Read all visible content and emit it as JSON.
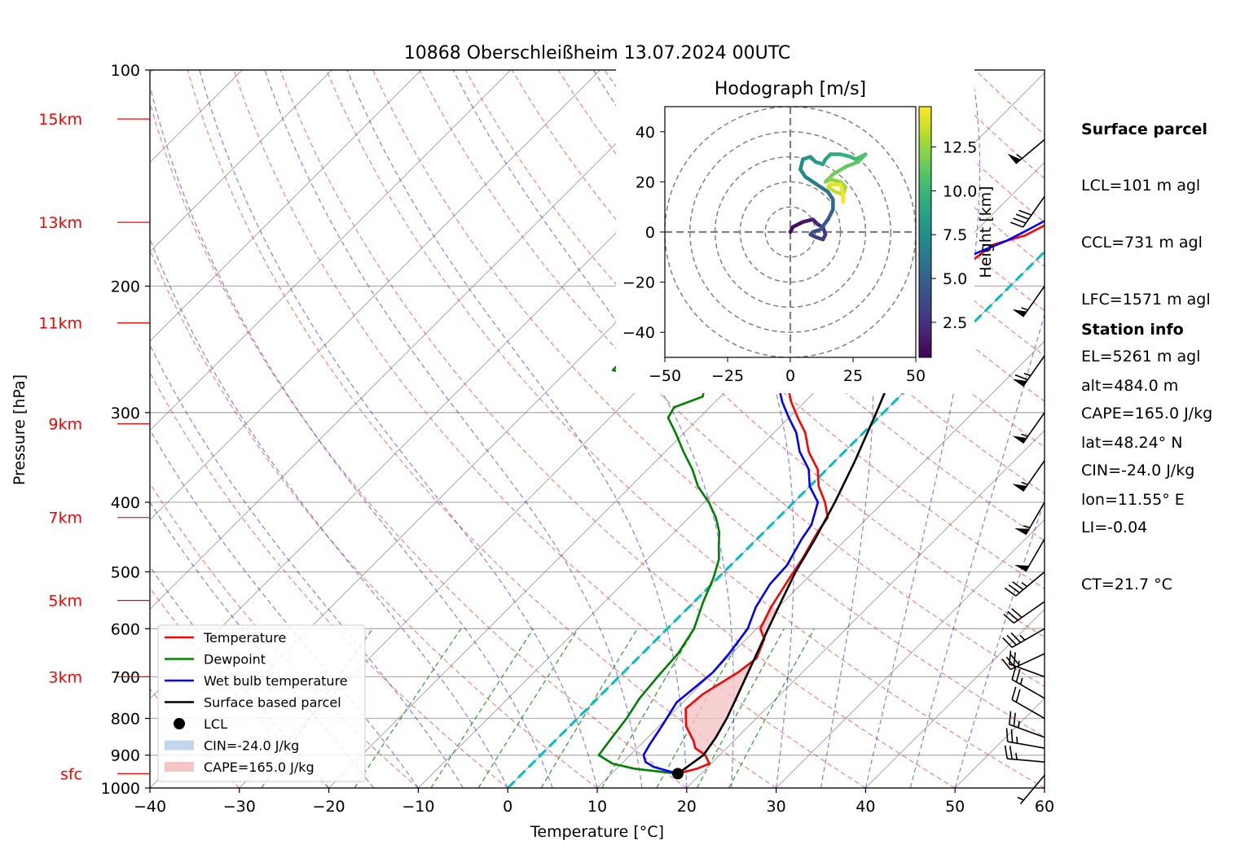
{
  "chart_data": {
    "type": "skew-t",
    "title": "10868 Oberschleißheim 13.07.2024 00UTC",
    "xlabel": "Temperature [°C]",
    "ylabel": "Pressure [hPa]",
    "xlim": [
      -40,
      60
    ],
    "ylim": [
      1000,
      100
    ],
    "x_ticks": [
      -40,
      -30,
      -20,
      -10,
      0,
      10,
      20,
      30,
      40,
      50,
      60
    ],
    "x_tick_labels": [
      "−40",
      "−30",
      "−20",
      "−10",
      "0",
      "10",
      "20",
      "30",
      "40",
      "50",
      "60"
    ],
    "y_ticks": [
      1000,
      900,
      800,
      700,
      600,
      500,
      400,
      300,
      200,
      100
    ],
    "height_labels": [
      {
        "text": "sfc",
        "pressure": 955
      },
      {
        "text": "3km",
        "pressure": 700
      },
      {
        "text": "5km",
        "pressure": 548
      },
      {
        "text": "7km",
        "pressure": 420
      },
      {
        "text": "9km",
        "pressure": 311
      },
      {
        "text": "11km",
        "pressure": 225
      },
      {
        "text": "13km",
        "pressure": 163
      },
      {
        "text": "15km",
        "pressure": 117
      }
    ],
    "series": [
      {
        "name": "Temperature",
        "color": "#ff0000",
        "points": [
          [
            17.4,
            955
          ],
          [
            19.0,
            940
          ],
          [
            19.8,
            925
          ],
          [
            18.4,
            900
          ],
          [
            16.5,
            880
          ],
          [
            15.5,
            860
          ],
          [
            13.0,
            820
          ],
          [
            11.0,
            775
          ],
          [
            11.3,
            740
          ],
          [
            12.8,
            690
          ],
          [
            13.3,
            660
          ],
          [
            12.0,
            620
          ],
          [
            10.4,
            600
          ],
          [
            9.2,
            560
          ],
          [
            8.0,
            510
          ],
          [
            7.3,
            480
          ],
          [
            6.0,
            440
          ],
          [
            5.5,
            420
          ],
          [
            3.5,
            400
          ],
          [
            1.0,
            380
          ],
          [
            -1.0,
            360
          ],
          [
            -4.0,
            340
          ],
          [
            -6.5,
            320
          ],
          [
            -9.0,
            305
          ],
          [
            -11.5,
            290
          ],
          [
            -13.0,
            280
          ],
          [
            -14.0,
            270
          ],
          [
            -15.5,
            260
          ],
          [
            -17.5,
            250
          ],
          [
            -19.0,
            245
          ],
          [
            -17.5,
            240
          ],
          [
            -16.5,
            235
          ],
          [
            -15.5,
            220
          ],
          [
            -14.5,
            210
          ],
          [
            -13.5,
            200
          ],
          [
            -11.0,
            195
          ],
          [
            -8.0,
            195
          ],
          [
            -7.5,
            190
          ],
          [
            -6.5,
            175
          ],
          [
            -4.0,
            170
          ],
          [
            -2.0,
            160
          ],
          [
            -1.0,
            150
          ],
          [
            1.0,
            140
          ],
          [
            2.5,
            135
          ],
          [
            4.5,
            125
          ],
          [
            6.5,
            120
          ],
          [
            10.0,
            115
          ]
        ]
      },
      {
        "name": "Dewpoint",
        "color": "#008000",
        "points": [
          [
            17.4,
            955
          ],
          [
            12.0,
            940
          ],
          [
            9.0,
            925
          ],
          [
            6.5,
            900
          ],
          [
            6.0,
            850
          ],
          [
            5.5,
            800
          ],
          [
            4.7,
            750
          ],
          [
            4.3,
            700
          ],
          [
            4.0,
            650
          ],
          [
            3.0,
            600
          ],
          [
            1.0,
            550
          ],
          [
            -0.5,
            510
          ],
          [
            -2.0,
            480
          ],
          [
            -3.5,
            460
          ],
          [
            -5.0,
            440
          ],
          [
            -7.0,
            420
          ],
          [
            -9.5,
            400
          ],
          [
            -12.5,
            380
          ],
          [
            -15.0,
            360
          ],
          [
            -18.0,
            340
          ],
          [
            -21.0,
            320
          ],
          [
            -23.5,
            305
          ],
          [
            -24.0,
            295
          ],
          [
            -22.0,
            285
          ],
          [
            -22.5,
            280
          ],
          [
            -31.5,
            265
          ],
          [
            -35.0,
            262
          ],
          [
            -35.0,
            250
          ],
          [
            -35.5,
            230
          ],
          [
            -36.0,
            210
          ],
          [
            -38.0,
            200
          ],
          [
            -36.5,
            190
          ],
          [
            -35.0,
            180
          ],
          [
            -34.0,
            170
          ],
          [
            -33.5,
            160
          ],
          [
            -33.5,
            150
          ],
          [
            -34.0,
            140
          ],
          [
            -36.0,
            130
          ],
          [
            -37.0,
            120
          ],
          [
            -35.0,
            115
          ]
        ]
      },
      {
        "name": "Wet bulb temperature",
        "color": "#0000ff",
        "points": [
          [
            17.4,
            955
          ],
          [
            14.0,
            935
          ],
          [
            12.5,
            920
          ],
          [
            11.5,
            900
          ],
          [
            11.0,
            870
          ],
          [
            10.3,
            820
          ],
          [
            9.3,
            760
          ],
          [
            9.7,
            720
          ],
          [
            10.0,
            690
          ],
          [
            9.7,
            650
          ],
          [
            9.0,
            600
          ],
          [
            7.5,
            560
          ],
          [
            6.5,
            520
          ],
          [
            6.3,
            490
          ],
          [
            5.0,
            450
          ],
          [
            4.5,
            430
          ],
          [
            2.7,
            400
          ],
          [
            0.0,
            380
          ],
          [
            -2.0,
            360
          ],
          [
            -5.0,
            340
          ],
          [
            -7.5,
            320
          ],
          [
            -10.0,
            305
          ],
          [
            -12.5,
            290
          ],
          [
            -14.0,
            280
          ],
          [
            -15.5,
            270
          ],
          [
            -16.5,
            262
          ],
          [
            -18.5,
            252
          ],
          [
            -19.5,
            245
          ],
          [
            -18.0,
            240
          ],
          [
            -17.5,
            235
          ],
          [
            -16.5,
            225
          ],
          [
            -15.5,
            215
          ],
          [
            -14.0,
            202
          ],
          [
            -12.5,
            197
          ],
          [
            -9.5,
            195
          ],
          [
            -8.5,
            190
          ],
          [
            -7.5,
            180
          ],
          [
            -5.5,
            173
          ],
          [
            -4.5,
            168
          ],
          [
            -3.0,
            160
          ],
          [
            -1.5,
            150
          ],
          [
            0.5,
            140
          ],
          [
            1.5,
            132
          ],
          [
            3.0,
            127
          ],
          [
            4.5,
            122
          ],
          [
            6.0,
            118
          ],
          [
            9.0,
            114
          ]
        ]
      },
      {
        "name": "Surface based parcel",
        "color": "#000000",
        "points": [
          [
            17.4,
            955
          ],
          [
            18.2,
            900
          ],
          [
            17.6,
            850
          ],
          [
            16.7,
            800
          ],
          [
            15.5,
            750
          ],
          [
            14.2,
            700
          ],
          [
            12.8,
            650
          ],
          [
            11.3,
            600
          ],
          [
            9.7,
            550
          ],
          [
            8.0,
            500
          ],
          [
            6.5,
            450
          ],
          [
            4.6,
            400
          ],
          [
            2.2,
            350
          ],
          [
            -0.8,
            300
          ],
          [
            -4.5,
            250
          ],
          [
            -10.4,
            200
          ],
          [
            -18.0,
            150
          ],
          [
            -24.5,
            118
          ]
        ]
      }
    ],
    "legend": {
      "placement": "lower-left",
      "entries": [
        {
          "label": "Temperature",
          "color": "#ff0000",
          "kind": "line"
        },
        {
          "label": "Dewpoint",
          "color": "#008000",
          "kind": "line"
        },
        {
          "label": "Wet bulb temperature",
          "color": "#0000ff",
          "kind": "line"
        },
        {
          "label": "Surface based parcel",
          "color": "#000000",
          "kind": "line"
        },
        {
          "label": "LCL",
          "color": "#000000",
          "kind": "dot"
        },
        {
          "label": "CIN=-24.0 J/kg",
          "color": "#c3d7ea",
          "kind": "patch"
        },
        {
          "label": "CAPE=165.0 J/kg",
          "color": "#f5c5c5",
          "kind": "patch"
        }
      ]
    },
    "lcl": {
      "t": 17.4,
      "p": 955
    },
    "cape_shading": {
      "color": "#f5c5c5",
      "label": "CAPE=165.0 J/kg"
    },
    "freezing_line": {
      "color": "#00bfbf",
      "value": 0
    },
    "isotherm_color": "#808080",
    "dry_adiabat_color": "#ff0000",
    "moist_adiabat_color": "#0000ff",
    "mixing_ratio_color": "#008000",
    "wind_barbs": [
      {
        "p": 960,
        "speed": 5,
        "dir": 220
      },
      {
        "p": 920,
        "speed": 25,
        "dir": 275
      },
      {
        "p": 880,
        "speed": 25,
        "dir": 280
      },
      {
        "p": 850,
        "speed": 25,
        "dir": 290
      },
      {
        "p": 800,
        "speed": 20,
        "dir": 300
      },
      {
        "p": 750,
        "speed": 25,
        "dir": 300
      },
      {
        "p": 700,
        "speed": 25,
        "dir": 290
      },
      {
        "p": 650,
        "speed": 30,
        "dir": 245
      },
      {
        "p": 600,
        "speed": 35,
        "dir": 240
      },
      {
        "p": 550,
        "speed": 30,
        "dir": 235
      },
      {
        "p": 500,
        "speed": 35,
        "dir": 230
      },
      {
        "p": 450,
        "speed": 50,
        "dir": 210
      },
      {
        "p": 400,
        "speed": 55,
        "dir": 210
      },
      {
        "p": 350,
        "speed": 55,
        "dir": 215
      },
      {
        "p": 300,
        "speed": 55,
        "dir": 215
      },
      {
        "p": 250,
        "speed": 65,
        "dir": 215
      },
      {
        "p": 200,
        "speed": 55,
        "dir": 215
      },
      {
        "p": 150,
        "speed": 40,
        "dir": 215
      },
      {
        "p": 125,
        "speed": 55,
        "dir": 230
      }
    ],
    "hodograph": {
      "title": "Hodograph [m/s]",
      "xlim": [
        -50,
        50
      ],
      "ylim": [
        -50,
        50
      ],
      "ticks": [
        -50,
        -25,
        0,
        25,
        50
      ],
      "tick_labels": [
        "−50",
        "−25",
        "0",
        "25",
        "50"
      ],
      "yticks": [
        -40,
        -20,
        0,
        20,
        40
      ],
      "ytick_labels": [
        "−40",
        "−20",
        "0",
        "20",
        "40"
      ],
      "rings": [
        10,
        20,
        30,
        40,
        50
      ],
      "colorbar_label": "Height [km]",
      "colorbar_range": [
        0.5,
        14.8
      ],
      "colorbar_ticks": [
        2.5,
        5.0,
        7.5,
        10.0,
        12.5
      ],
      "colorbar_tick_labels": [
        "2.5",
        "5.0",
        "7.5",
        "10.0",
        "12.5"
      ],
      "points": [
        [
          0,
          0,
          0.5
        ],
        [
          1,
          2,
          0.8
        ],
        [
          5,
          4,
          1.2
        ],
        [
          9,
          5,
          1.6
        ],
        [
          11,
          3,
          2.0
        ],
        [
          13,
          2,
          2.3
        ],
        [
          14,
          -1,
          2.6
        ],
        [
          13,
          -3,
          2.9
        ],
        [
          10,
          -2,
          3.2
        ],
        [
          8,
          -1,
          3.5
        ],
        [
          9,
          0,
          3.8
        ],
        [
          12,
          1,
          4.1
        ],
        [
          15,
          5,
          4.5
        ],
        [
          17,
          9,
          4.9
        ],
        [
          17,
          13,
          5.3
        ],
        [
          15,
          16,
          5.7
        ],
        [
          12,
          18,
          6.1
        ],
        [
          9,
          20,
          6.5
        ],
        [
          6,
          22,
          6.9
        ],
        [
          4,
          25,
          7.3
        ],
        [
          5,
          29,
          7.6
        ],
        [
          8,
          30,
          8.0
        ],
        [
          10,
          28,
          8.3
        ],
        [
          13,
          27,
          8.6
        ],
        [
          14,
          29,
          8.9
        ],
        [
          16,
          31,
          9.2
        ],
        [
          20,
          31,
          9.5
        ],
        [
          24,
          30,
          9.8
        ],
        [
          26,
          29,
          10.1
        ],
        [
          28,
          30,
          10.4
        ],
        [
          30,
          31,
          10.7
        ],
        [
          27,
          28,
          11.0
        ],
        [
          22,
          26,
          11.3
        ],
        [
          17,
          23,
          11.6
        ],
        [
          14,
          20,
          11.9
        ],
        [
          16,
          21,
          12.2
        ],
        [
          20,
          20,
          12.5
        ],
        [
          22,
          18,
          12.8
        ],
        [
          21,
          15,
          13.1
        ],
        [
          18,
          16,
          13.4
        ],
        [
          15,
          18,
          13.7
        ],
        [
          16,
          19,
          14.0
        ],
        [
          20,
          19,
          14.3
        ],
        [
          21,
          15,
          14.6
        ],
        [
          21,
          12,
          14.8
        ]
      ]
    }
  },
  "info": {
    "surface_title": "Surface parcel",
    "surface_lines": [
      "LCL=101 m agl",
      "CCL=731 m agl",
      "LFC=1571 m agl",
      "EL=5261 m agl",
      "CAPE=165.0 J/kg",
      "CIN=-24.0 J/kg",
      "LI=-0.04",
      "CT=21.7 °C"
    ],
    "station_title": "Station info",
    "station_lines": [
      "alt=484.0 m",
      "lat=48.24° N",
      "lon=11.55° E"
    ]
  }
}
